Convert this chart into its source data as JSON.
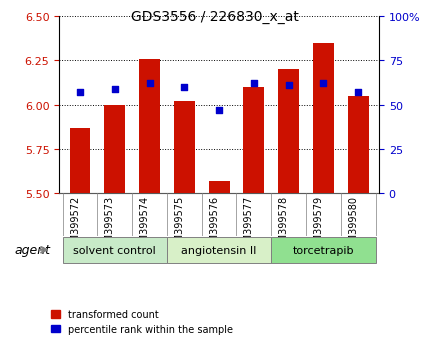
{
  "title": "GDS3556 / 226830_x_at",
  "samples": [
    "GSM399572",
    "GSM399573",
    "GSM399574",
    "GSM399575",
    "GSM399576",
    "GSM399577",
    "GSM399578",
    "GSM399579",
    "GSM399580"
  ],
  "transformed_count": [
    5.87,
    6.0,
    6.26,
    6.02,
    5.57,
    6.1,
    6.2,
    6.35,
    6.05
  ],
  "percentile_rank": [
    57,
    59,
    62,
    60,
    47,
    62,
    61,
    62,
    57
  ],
  "bar_bottom": 5.5,
  "red_color": "#cc1100",
  "blue_color": "#0000cc",
  "left_ylim": [
    5.5,
    6.5
  ],
  "right_ylim": [
    0,
    100
  ],
  "left_yticks": [
    5.5,
    5.75,
    6.0,
    6.25,
    6.5
  ],
  "right_yticks": [
    0,
    25,
    50,
    75,
    100
  ],
  "right_yticklabels": [
    "0",
    "25",
    "50",
    "75",
    "100%"
  ],
  "groups": [
    {
      "label": "solvent control",
      "start": 0,
      "end": 3,
      "color": "#c8eac8"
    },
    {
      "label": "angiotensin II",
      "start": 3,
      "end": 6,
      "color": "#d8f0c8"
    },
    {
      "label": "torcetrapib",
      "start": 6,
      "end": 9,
      "color": "#90e090"
    }
  ],
  "agent_label": "agent",
  "legend_red": "transformed count",
  "legend_blue": "percentile rank within the sample",
  "bar_width": 0.6,
  "grid_color": "#888888",
  "background_color": "#ffffff"
}
